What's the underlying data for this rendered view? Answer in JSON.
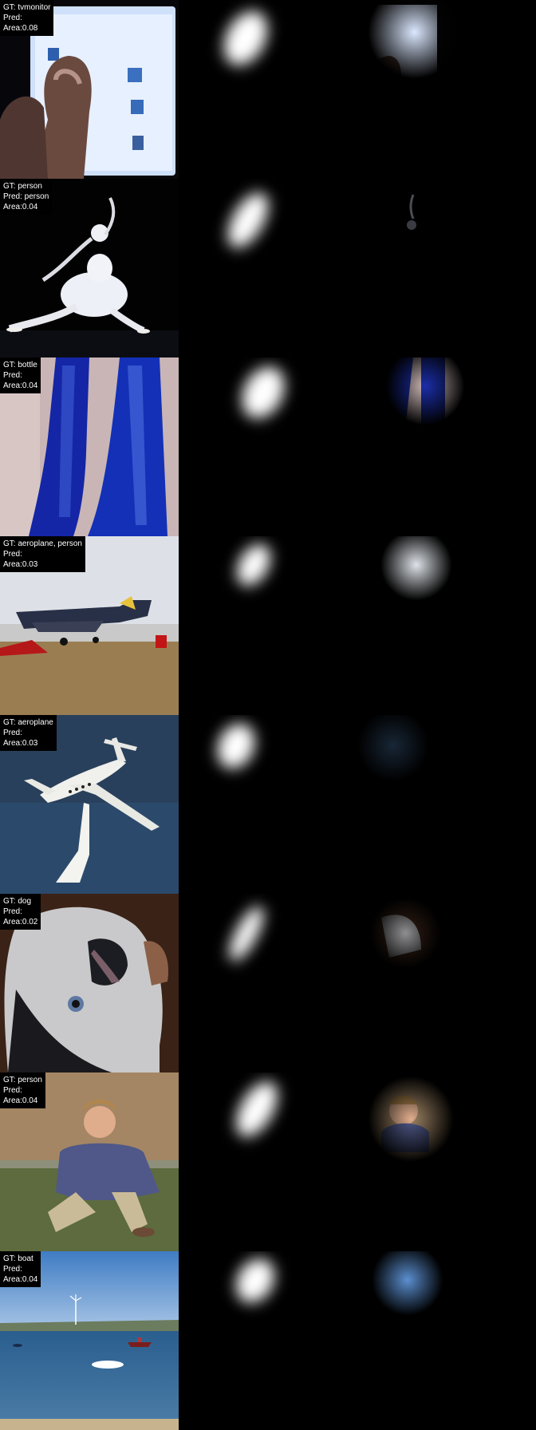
{
  "rows": [
    {
      "gt": "GT: tvmonitor",
      "pred": "Pred:",
      "area": "Area:0.08",
      "colors": {
        "sky": "#0a0a12",
        "accent": "#d9e6fb"
      }
    },
    {
      "gt": "GT: person",
      "pred": "Pred: person",
      "area": "Area:0.04",
      "colors": {
        "sky": "#030303",
        "accent": "#e8eaf2"
      }
    },
    {
      "gt": "GT: bottle",
      "pred": "Pred:",
      "area": "Area:0.04",
      "colors": {
        "sky": "#cbb6b4",
        "accent": "#1b2aa8"
      }
    },
    {
      "gt": "GT: aeroplane, person",
      "pred": "Pred:",
      "area": "Area:0.03",
      "colors": {
        "sky": "#d9dde3",
        "accent": "#9a7d52"
      }
    },
    {
      "gt": "GT: aeroplane",
      "pred": "Pred:",
      "area": "Area:0.03",
      "colors": {
        "sky": "#2a3f58",
        "accent": "#f1f1ec"
      }
    },
    {
      "gt": "GT: dog",
      "pred": "Pred:",
      "area": "Area:0.02",
      "colors": {
        "sky": "#3b2418",
        "accent": "#cfcfd0"
      }
    },
    {
      "gt": "GT: person",
      "pred": "Pred:",
      "area": "Area:0.04",
      "colors": {
        "sky": "#8c8f77",
        "accent": "#4f5a86"
      }
    },
    {
      "gt": "GT: boat",
      "pred": "Pred:",
      "area": "Area:0.04",
      "colors": {
        "sky": "#4a86c8",
        "accent": "#2c5f8c"
      }
    }
  ]
}
